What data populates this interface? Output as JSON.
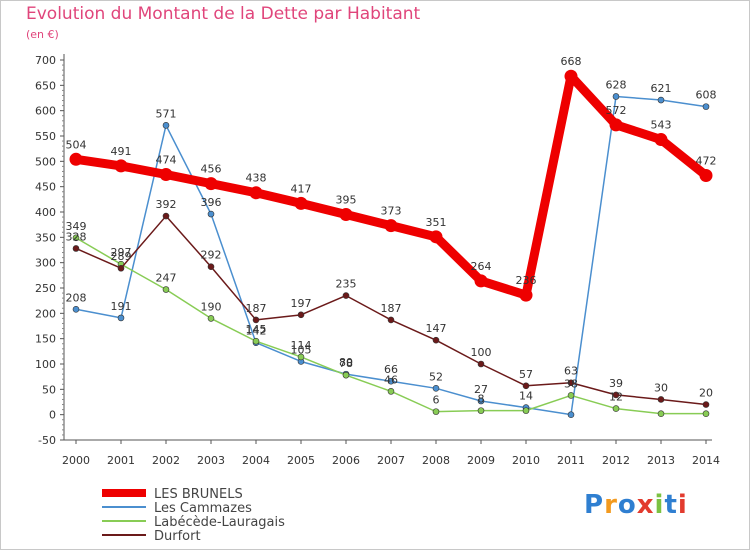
{
  "title": "Evolution du Montant de la Dette par Habitant",
  "subtitle": "(en €)",
  "logo": {
    "text": "Proxiti",
    "colors": [
      "#2f7fd1",
      "#f39a1e",
      "#2f7fd1",
      "#e23b2e",
      "#7cc242",
      "#2f7fd1",
      "#e23b2e"
    ]
  },
  "chart_data": {
    "type": "line",
    "x": [
      "2000",
      "2001",
      "2002",
      "2003",
      "2004",
      "2005",
      "2006",
      "2007",
      "2008",
      "2009",
      "2010",
      "2011",
      "2012",
      "2013",
      "2014"
    ],
    "ylim": [
      -50,
      700
    ],
    "yticks": [
      -50,
      0,
      50,
      100,
      150,
      200,
      250,
      300,
      350,
      400,
      450,
      500,
      550,
      600,
      650,
      700
    ],
    "grid": false,
    "legend_position": "bottom-left",
    "series": [
      {
        "name": "LES BRUNELS",
        "color": "#ee0000",
        "bold": true,
        "values": [
          504,
          491,
          474,
          456,
          438,
          417,
          395,
          373,
          351,
          264,
          236,
          668,
          572,
          543,
          472
        ],
        "labels": [
          "504",
          "491",
          "474",
          "456",
          "438",
          "417",
          "395",
          "373",
          "351",
          "264",
          "236",
          "668",
          "572",
          "543",
          "472"
        ]
      },
      {
        "name": "Les Cammazes",
        "color": "#4b8fcf",
        "bold": false,
        "values": [
          208,
          191,
          571,
          396,
          142,
          105,
          80,
          66,
          52,
          27,
          14,
          0,
          628,
          621,
          608
        ],
        "labels": [
          "208",
          "191",
          "571",
          "396",
          "142",
          "105",
          "80",
          "66",
          "52",
          "27",
          "14",
          "",
          "628",
          "621",
          "608"
        ]
      },
      {
        "name": "Labécède-Lauragais",
        "color": "#88cc55",
        "bold": false,
        "values": [
          349,
          297,
          247,
          190,
          145,
          114,
          78,
          46,
          6,
          8,
          8,
          38,
          12,
          2,
          2
        ],
        "labels": [
          "349",
          "297",
          "247",
          "190",
          "145",
          "114",
          "78",
          "46",
          "6",
          "8",
          "",
          "38",
          "12",
          "",
          ""
        ]
      },
      {
        "name": "Durfort",
        "color": "#6b1a1a",
        "bold": false,
        "values": [
          328,
          289,
          392,
          292,
          187,
          197,
          235,
          187,
          147,
          100,
          57,
          63,
          39,
          30,
          20
        ],
        "labels": [
          "328",
          "289",
          "392",
          "292",
          "187",
          "197",
          "235",
          "187",
          "147",
          "100",
          "57",
          "63",
          "39",
          "30",
          "20"
        ]
      }
    ]
  }
}
